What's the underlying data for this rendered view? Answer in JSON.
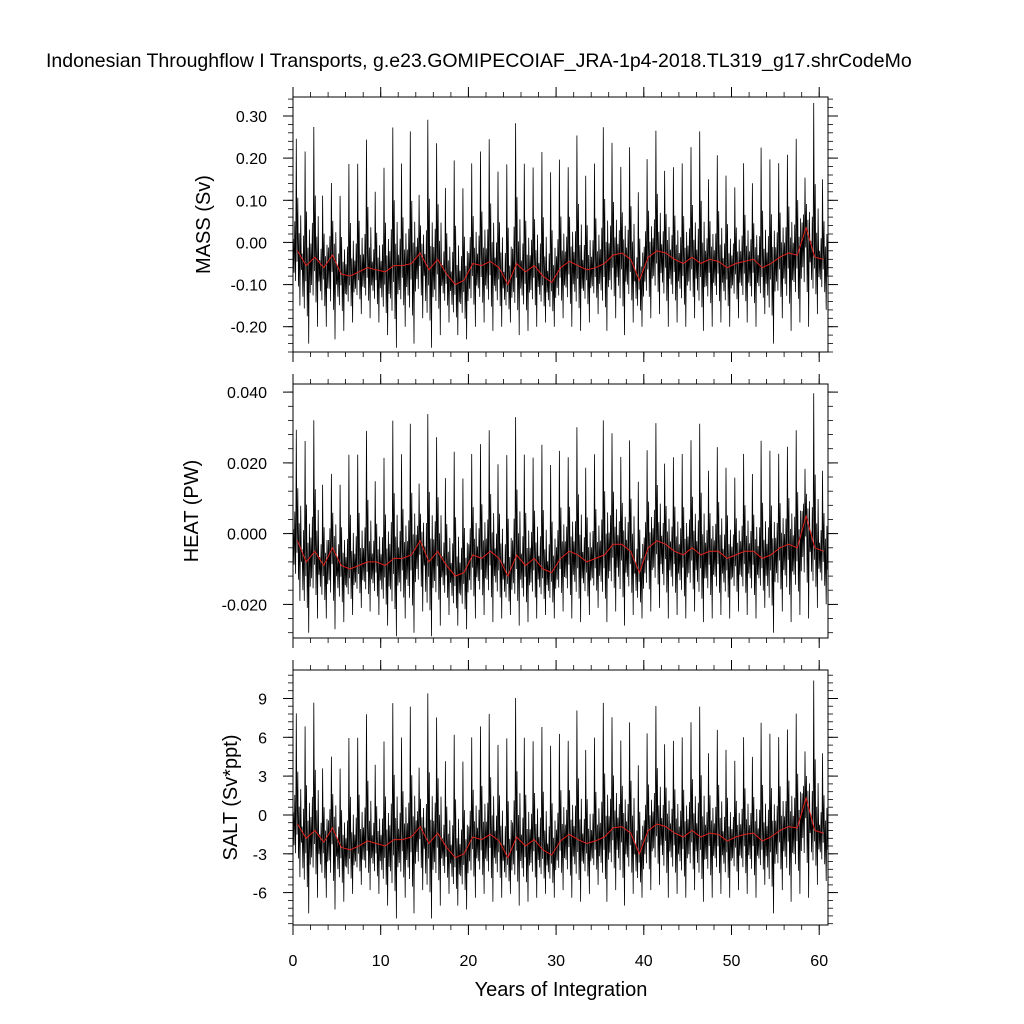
{
  "title": "Indonesian Throughflow I Transports, g.e23.GOMIPECOIAF_JRA-1p4-2018.TL319_g17.shrCodeMo",
  "xlabel": "Years of Integration",
  "colors": {
    "monthly": "#000000",
    "annual": "#e0201b"
  },
  "chart_data": [
    {
      "type": "line",
      "panel": "mass",
      "ylabel": "MASS (Sv)",
      "xlim": [
        0,
        61
      ],
      "ylim": [
        -0.26,
        0.345
      ],
      "xticks": [
        0,
        10,
        20,
        30,
        40,
        50,
        60
      ],
      "xticklabels": [
        "0",
        "10",
        "20",
        "30",
        "40",
        "50",
        "60"
      ],
      "yticks": [
        -0.2,
        -0.1,
        0.0,
        0.1,
        0.2,
        0.3
      ],
      "yticklabels": [
        "-0.20",
        "-0.10",
        "0.00",
        "0.10",
        "0.20",
        "0.30"
      ],
      "grid": false,
      "annual_mean": [
        -0.02,
        -0.055,
        -0.035,
        -0.06,
        -0.03,
        -0.075,
        -0.08,
        -0.07,
        -0.06,
        -0.065,
        -0.07,
        -0.055,
        -0.055,
        -0.05,
        -0.025,
        -0.065,
        -0.04,
        -0.075,
        -0.1,
        -0.09,
        -0.05,
        -0.055,
        -0.045,
        -0.06,
        -0.1,
        -0.05,
        -0.07,
        -0.055,
        -0.08,
        -0.095,
        -0.06,
        -0.045,
        -0.055,
        -0.065,
        -0.06,
        -0.05,
        -0.03,
        -0.025,
        -0.04,
        -0.09,
        -0.035,
        -0.02,
        -0.025,
        -0.04,
        -0.05,
        -0.035,
        -0.05,
        -0.04,
        -0.045,
        -0.06,
        -0.05,
        -0.045,
        -0.04,
        -0.06,
        -0.05,
        -0.035,
        -0.025,
        -0.03,
        0.035,
        -0.035,
        -0.04
      ],
      "summer_peaks": [
        0.26,
        0.23,
        0.29,
        0.12,
        0.15,
        0.12,
        0.2,
        0.2,
        0.26,
        0.13,
        0.19,
        0.29,
        0.2,
        0.28,
        0.12,
        0.31,
        0.25,
        0.14,
        0.21,
        0.14,
        0.2,
        0.23,
        0.26,
        0.18,
        0.2,
        0.3,
        0.2,
        0.19,
        0.23,
        0.18,
        0.21,
        0.19,
        0.27,
        0.17,
        0.2,
        0.29,
        0.25,
        0.19,
        0.24,
        0.13,
        0.21,
        0.28,
        0.18,
        0.19,
        0.2,
        0.24,
        0.28,
        0.16,
        0.22,
        0.17,
        0.14,
        0.2,
        0.15,
        0.24,
        0.21,
        0.2,
        0.22,
        0.26,
        0.16,
        0.35,
        0.16
      ],
      "winter_troughs": [
        -0.15,
        -0.24,
        -0.2,
        -0.2,
        -0.23,
        -0.21,
        -0.19,
        -0.17,
        -0.18,
        -0.19,
        -0.22,
        -0.25,
        -0.2,
        -0.24,
        -0.18,
        -0.25,
        -0.22,
        -0.19,
        -0.22,
        -0.23,
        -0.2,
        -0.19,
        -0.21,
        -0.2,
        -0.19,
        -0.22,
        -0.21,
        -0.2,
        -0.19,
        -0.2,
        -0.18,
        -0.2,
        -0.21,
        -0.19,
        -0.17,
        -0.21,
        -0.18,
        -0.22,
        -0.19,
        -0.2,
        -0.18,
        -0.17,
        -0.2,
        -0.19,
        -0.2,
        -0.18,
        -0.21,
        -0.2,
        -0.19,
        -0.2,
        -0.18,
        -0.19,
        -0.2,
        -0.17,
        -0.24,
        -0.18,
        -0.21,
        -0.19,
        -0.2,
        -0.17,
        -0.16
      ]
    },
    {
      "type": "line",
      "panel": "heat",
      "ylabel": "HEAT (PW)",
      "xlim": [
        0,
        61
      ],
      "ylim": [
        -0.0295,
        0.0423
      ],
      "xticks": [
        0,
        10,
        20,
        30,
        40,
        50,
        60
      ],
      "xticklabels": [
        "0",
        "10",
        "20",
        "30",
        "40",
        "50",
        "60"
      ],
      "yticks": [
        -0.02,
        0.0,
        0.02,
        0.04
      ],
      "yticklabels": [
        "-0.020",
        "0.000",
        "0.020",
        "0.040"
      ],
      "grid": false,
      "annual_mean": [
        -0.002,
        -0.008,
        -0.005,
        -0.009,
        -0.004,
        -0.009,
        -0.01,
        -0.009,
        -0.008,
        -0.008,
        -0.009,
        -0.007,
        -0.007,
        -0.006,
        -0.002,
        -0.008,
        -0.005,
        -0.009,
        -0.012,
        -0.011,
        -0.006,
        -0.007,
        -0.005,
        -0.007,
        -0.012,
        -0.006,
        -0.009,
        -0.007,
        -0.01,
        -0.011,
        -0.007,
        -0.005,
        -0.006,
        -0.008,
        -0.007,
        -0.006,
        -0.003,
        -0.003,
        -0.005,
        -0.011,
        -0.004,
        -0.002,
        -0.003,
        -0.005,
        -0.006,
        -0.004,
        -0.006,
        -0.005,
        -0.005,
        -0.007,
        -0.006,
        -0.005,
        -0.005,
        -0.007,
        -0.006,
        -0.004,
        -0.003,
        -0.004,
        0.005,
        -0.004,
        -0.005
      ],
      "summer_peaks": [
        0.031,
        0.028,
        0.034,
        0.015,
        0.018,
        0.015,
        0.024,
        0.024,
        0.031,
        0.016,
        0.023,
        0.034,
        0.024,
        0.033,
        0.015,
        0.036,
        0.029,
        0.017,
        0.025,
        0.017,
        0.024,
        0.027,
        0.031,
        0.021,
        0.024,
        0.035,
        0.024,
        0.023,
        0.027,
        0.021,
        0.025,
        0.023,
        0.032,
        0.02,
        0.024,
        0.034,
        0.03,
        0.023,
        0.028,
        0.016,
        0.025,
        0.033,
        0.021,
        0.023,
        0.024,
        0.028,
        0.033,
        0.019,
        0.026,
        0.02,
        0.017,
        0.024,
        0.018,
        0.028,
        0.025,
        0.024,
        0.026,
        0.031,
        0.019,
        0.042,
        0.019
      ],
      "winter_troughs": [
        -0.019,
        -0.028,
        -0.024,
        -0.024,
        -0.027,
        -0.025,
        -0.023,
        -0.021,
        -0.022,
        -0.023,
        -0.026,
        -0.029,
        -0.024,
        -0.028,
        -0.022,
        -0.029,
        -0.026,
        -0.023,
        -0.026,
        -0.027,
        -0.024,
        -0.023,
        -0.025,
        -0.024,
        -0.023,
        -0.026,
        -0.025,
        -0.024,
        -0.023,
        -0.024,
        -0.022,
        -0.024,
        -0.025,
        -0.023,
        -0.021,
        -0.025,
        -0.022,
        -0.026,
        -0.023,
        -0.024,
        -0.022,
        -0.021,
        -0.024,
        -0.023,
        -0.024,
        -0.022,
        -0.025,
        -0.024,
        -0.023,
        -0.024,
        -0.022,
        -0.023,
        -0.024,
        -0.021,
        -0.028,
        -0.022,
        -0.025,
        -0.023,
        -0.024,
        -0.021,
        -0.02
      ]
    },
    {
      "type": "line",
      "panel": "salt",
      "ylabel": "SALT (Sv*ppt)",
      "xlim": [
        0,
        61
      ],
      "ylim": [
        -8.5,
        11.2
      ],
      "xticks": [
        0,
        10,
        20,
        30,
        40,
        50,
        60
      ],
      "xticklabels": [
        "0",
        "10",
        "20",
        "30",
        "40",
        "50",
        "60"
      ],
      "yticks": [
        -6,
        -3,
        0,
        3,
        6,
        9
      ],
      "yticklabels": [
        "-6",
        "-3",
        "0",
        "3",
        "6",
        "9"
      ],
      "grid": false,
      "annual_mean": [
        -0.7,
        -1.8,
        -1.2,
        -2.1,
        -1.0,
        -2.5,
        -2.7,
        -2.4,
        -2.0,
        -2.2,
        -2.4,
        -1.9,
        -1.9,
        -1.7,
        -0.9,
        -2.2,
        -1.4,
        -2.5,
        -3.3,
        -3.0,
        -1.7,
        -1.9,
        -1.5,
        -2.0,
        -3.3,
        -1.7,
        -2.4,
        -1.9,
        -2.7,
        -3.1,
        -2.0,
        -1.5,
        -1.9,
        -2.2,
        -2.0,
        -1.7,
        -1.0,
        -0.9,
        -1.4,
        -3.0,
        -1.2,
        -0.7,
        -0.9,
        -1.4,
        -1.7,
        -1.2,
        -1.7,
        -1.4,
        -1.5,
        -2.0,
        -1.7,
        -1.5,
        -1.4,
        -2.0,
        -1.7,
        -1.2,
        -0.9,
        -1.0,
        1.3,
        -1.2,
        -1.4
      ],
      "summer_peaks": [
        8.3,
        7.3,
        9.2,
        3.9,
        4.8,
        3.9,
        6.4,
        6.4,
        8.3,
        4.2,
        6.1,
        9.2,
        6.4,
        8.9,
        3.9,
        10.0,
        8.0,
        4.5,
        6.7,
        4.5,
        6.4,
        7.3,
        8.3,
        5.8,
        6.4,
        9.6,
        6.4,
        6.1,
        7.3,
        5.8,
        6.7,
        6.1,
        8.6,
        5.4,
        6.4,
        9.2,
        8.0,
        6.1,
        7.6,
        4.2,
        6.7,
        8.9,
        5.8,
        6.1,
        6.4,
        7.6,
        8.9,
        5.1,
        7.0,
        5.4,
        4.5,
        6.4,
        4.8,
        7.6,
        6.7,
        6.4,
        7.0,
        8.3,
        5.1,
        11.0,
        5.1
      ],
      "winter_troughs": [
        -4.8,
        -7.6,
        -6.4,
        -6.4,
        -7.3,
        -6.7,
        -6.1,
        -5.4,
        -5.8,
        -6.1,
        -7.0,
        -8.0,
        -6.4,
        -7.6,
        -5.8,
        -8.0,
        -7.0,
        -6.1,
        -7.0,
        -7.3,
        -6.4,
        -6.1,
        -6.7,
        -6.4,
        -6.1,
        -7.0,
        -6.7,
        -6.4,
        -6.1,
        -6.4,
        -5.8,
        -6.4,
        -6.7,
        -6.1,
        -5.4,
        -6.7,
        -5.8,
        -7.0,
        -6.1,
        -6.4,
        -5.8,
        -5.4,
        -6.4,
        -6.1,
        -6.4,
        -5.8,
        -6.7,
        -6.4,
        -6.1,
        -6.4,
        -5.8,
        -6.1,
        -6.4,
        -5.4,
        -7.6,
        -5.8,
        -6.7,
        -6.1,
        -6.4,
        -5.4,
        -5.1
      ]
    }
  ]
}
